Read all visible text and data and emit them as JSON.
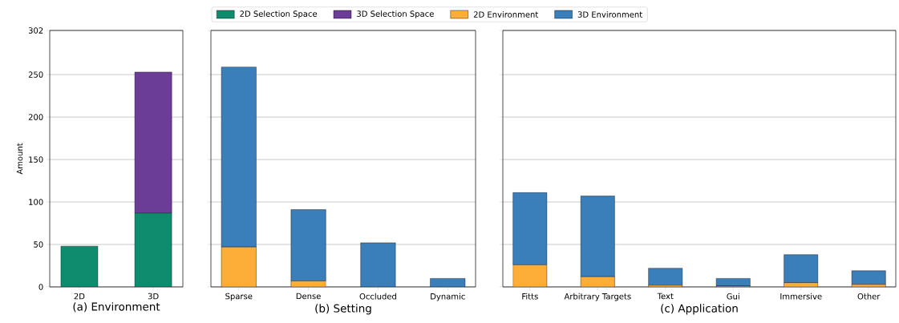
{
  "chart_data": [
    {
      "type": "bar",
      "stacked": true,
      "xlabel": "(a) Environment",
      "ylabel": "Amount",
      "categories": [
        "2D",
        "3D"
      ],
      "series": [
        {
          "name": "2D Selection Space",
          "color": "#0f8b6d",
          "values": [
            48,
            87
          ]
        },
        {
          "name": "3D Selection Space",
          "color": "#6b3d96",
          "values": [
            0,
            166
          ]
        }
      ],
      "ylim": [
        0,
        302
      ],
      "yticks": [
        0,
        50,
        100,
        150,
        200,
        250,
        302
      ],
      "grid": "y",
      "legend": "top"
    },
    {
      "type": "bar",
      "stacked": true,
      "xlabel": "(b) Setting",
      "categories": [
        "Sparse",
        "Dense",
        "Occluded",
        "Dynamic"
      ],
      "series": [
        {
          "name": "2D Environment",
          "color": "#fdae38",
          "values": [
            47,
            7,
            0,
            0
          ]
        },
        {
          "name": "3D Environment",
          "color": "#3a7eba",
          "values": [
            212,
            84,
            52,
            10
          ]
        }
      ],
      "ylim": [
        0,
        302
      ],
      "yticks": [
        0,
        50,
        100,
        150,
        200,
        250,
        302
      ],
      "grid": "y",
      "legend": "top",
      "tick_labels": "x"
    },
    {
      "type": "bar",
      "stacked": true,
      "xlabel": "(c) Application",
      "categories": [
        "Fitts",
        "Arbitrary Targets",
        "Text",
        "Gui",
        "Immersive",
        "Other"
      ],
      "series": [
        {
          "color": "#fdae38",
          "values": [
            26,
            12,
            2,
            1,
            5,
            3
          ]
        },
        {
          "color": "#3a7eba",
          "values": [
            85,
            95,
            20,
            9,
            33,
            16
          ]
        }
      ],
      "ylim": [
        0,
        302
      ],
      "yticks": [
        0,
        50,
        100,
        150,
        200,
        250,
        302
      ],
      "grid": "y",
      "tick_labels": "x"
    }
  ]
}
